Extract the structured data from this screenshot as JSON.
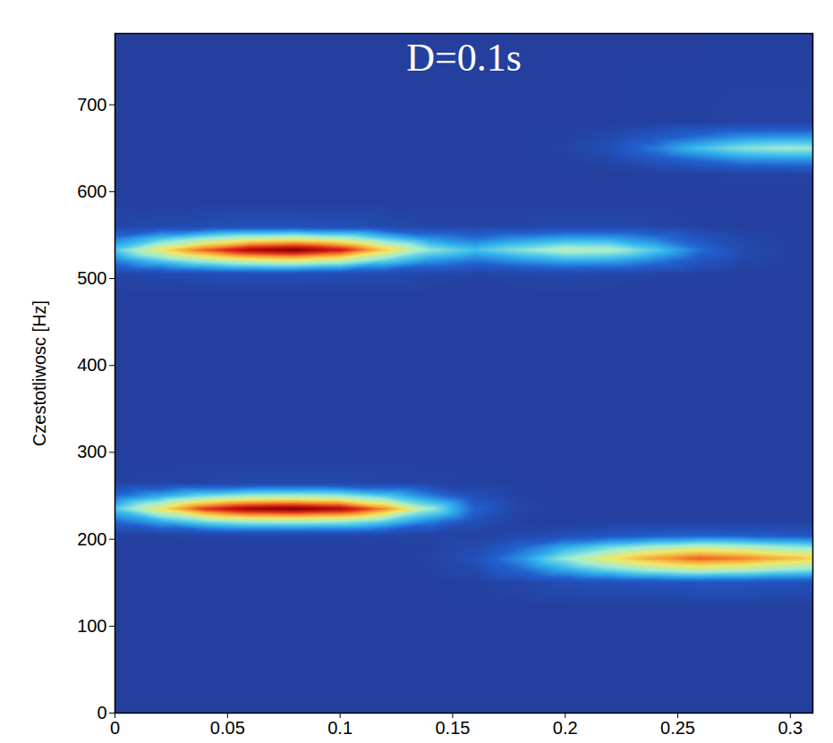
{
  "chart_data": {
    "type": "heatmap",
    "title": "D=0.1s",
    "ylabel": "Czestotliwosc [Hz]",
    "xlim": [
      0,
      0.31
    ],
    "ylim": [
      0,
      782
    ],
    "xticks": [
      0,
      0.05,
      0.1,
      0.15,
      0.2,
      0.25,
      0.3
    ],
    "yticks": [
      0,
      100,
      200,
      300,
      400,
      500,
      600,
      700
    ],
    "color": "jet",
    "zlim": [
      0,
      1
    ],
    "x": [
      0,
      0.02,
      0.04,
      0.06,
      0.08,
      0.1,
      0.12,
      0.14,
      0.16,
      0.18,
      0.2,
      0.22,
      0.24,
      0.26,
      0.28,
      0.3,
      0.31
    ],
    "y": [
      0,
      120,
      150,
      165,
      178,
      191,
      205,
      220,
      235,
      250,
      265,
      300,
      480,
      505,
      520,
      533,
      546,
      560,
      590,
      620,
      637,
      650,
      663,
      680,
      782
    ],
    "values": [
      [
        0,
        0,
        0,
        0,
        0,
        0,
        0,
        0,
        0,
        0,
        0,
        0,
        0,
        0,
        0,
        0,
        0
      ],
      [
        0,
        0,
        0,
        0,
        0,
        0,
        0,
        0,
        0,
        0,
        0,
        0,
        0,
        0,
        0,
        0,
        0
      ],
      [
        0,
        0,
        0,
        0,
        0,
        0,
        0,
        0,
        0.01,
        0.03,
        0.06,
        0.08,
        0.09,
        0.1,
        0.1,
        0.09,
        0.08
      ],
      [
        0,
        0,
        0,
        0,
        0,
        0,
        0,
        0.01,
        0.05,
        0.16,
        0.29,
        0.39,
        0.47,
        0.52,
        0.49,
        0.44,
        0.42
      ],
      [
        0,
        0,
        0,
        0,
        0,
        0,
        0,
        0.02,
        0.08,
        0.24,
        0.44,
        0.6,
        0.72,
        0.8,
        0.76,
        0.68,
        0.64
      ],
      [
        0,
        0,
        0,
        0,
        0,
        0,
        0,
        0.01,
        0.05,
        0.16,
        0.29,
        0.39,
        0.47,
        0.52,
        0.49,
        0.44,
        0.42
      ],
      [
        0.01,
        0.02,
        0.03,
        0.04,
        0.04,
        0.04,
        0.03,
        0.02,
        0.02,
        0.04,
        0.07,
        0.1,
        0.12,
        0.13,
        0.12,
        0.11,
        0.1
      ],
      [
        0.16,
        0.28,
        0.39,
        0.45,
        0.46,
        0.44,
        0.35,
        0.21,
        0.07,
        0.01,
        0,
        0.01,
        0.01,
        0.01,
        0.01,
        0.01,
        0.01
      ],
      [
        0.35,
        0.6,
        0.85,
        0.97,
        1,
        0.95,
        0.75,
        0.45,
        0.15,
        0.03,
        0,
        0,
        0,
        0,
        0,
        0,
        0
      ],
      [
        0.16,
        0.28,
        0.39,
        0.45,
        0.46,
        0.44,
        0.35,
        0.21,
        0.07,
        0.01,
        0,
        0,
        0,
        0,
        0,
        0,
        0
      ],
      [
        0.01,
        0.02,
        0.03,
        0.04,
        0.04,
        0.04,
        0.03,
        0.02,
        0.01,
        0,
        0,
        0,
        0,
        0,
        0,
        0,
        0
      ],
      [
        0,
        0,
        0,
        0,
        0,
        0,
        0,
        0,
        0,
        0,
        0,
        0,
        0,
        0,
        0,
        0,
        0
      ],
      [
        0,
        0,
        0,
        0,
        0,
        0,
        0,
        0,
        0,
        0,
        0,
        0,
        0,
        0,
        0,
        0,
        0
      ],
      [
        0.02,
        0.04,
        0.06,
        0.07,
        0.07,
        0.06,
        0.05,
        0.03,
        0.02,
        0.03,
        0.04,
        0.03,
        0.02,
        0.01,
        0,
        0,
        0
      ],
      [
        0.2,
        0.34,
        0.45,
        0.53,
        0.56,
        0.5,
        0.36,
        0.24,
        0.18,
        0.24,
        0.28,
        0.27,
        0.2,
        0.1,
        0.03,
        0.01,
        0
      ],
      [
        0.35,
        0.6,
        0.8,
        0.95,
        1,
        0.9,
        0.65,
        0.43,
        0.33,
        0.42,
        0.5,
        0.48,
        0.35,
        0.18,
        0.05,
        0.01,
        0
      ],
      [
        0.2,
        0.34,
        0.45,
        0.53,
        0.56,
        0.5,
        0.36,
        0.24,
        0.18,
        0.24,
        0.28,
        0.27,
        0.2,
        0.1,
        0.03,
        0.01,
        0
      ],
      [
        0.03,
        0.05,
        0.06,
        0.08,
        0.08,
        0.07,
        0.05,
        0.03,
        0.03,
        0.03,
        0.04,
        0.04,
        0.03,
        0.01,
        0,
        0,
        0
      ],
      [
        0,
        0,
        0,
        0,
        0,
        0,
        0,
        0,
        0,
        0,
        0,
        0,
        0,
        0,
        0,
        0,
        0
      ],
      [
        0,
        0,
        0,
        0,
        0,
        0,
        0,
        0,
        0,
        0,
        0,
        0,
        0.01,
        0.01,
        0.02,
        0.02,
        0.02
      ],
      [
        0,
        0,
        0,
        0,
        0,
        0,
        0,
        0,
        0,
        0,
        0.01,
        0.04,
        0.11,
        0.18,
        0.24,
        0.25,
        0.25
      ],
      [
        0,
        0,
        0,
        0,
        0,
        0,
        0,
        0,
        0,
        0,
        0.02,
        0.08,
        0.2,
        0.33,
        0.42,
        0.45,
        0.44
      ],
      [
        0,
        0,
        0,
        0,
        0,
        0,
        0,
        0,
        0,
        0,
        0.01,
        0.04,
        0.11,
        0.18,
        0.24,
        0.25,
        0.25
      ],
      [
        0,
        0,
        0,
        0,
        0,
        0,
        0,
        0,
        0,
        0,
        0,
        0,
        0.01,
        0.01,
        0.02,
        0.02,
        0.02
      ],
      [
        0,
        0,
        0,
        0,
        0,
        0,
        0,
        0,
        0,
        0,
        0,
        0,
        0,
        0,
        0,
        0,
        0
      ]
    ]
  }
}
